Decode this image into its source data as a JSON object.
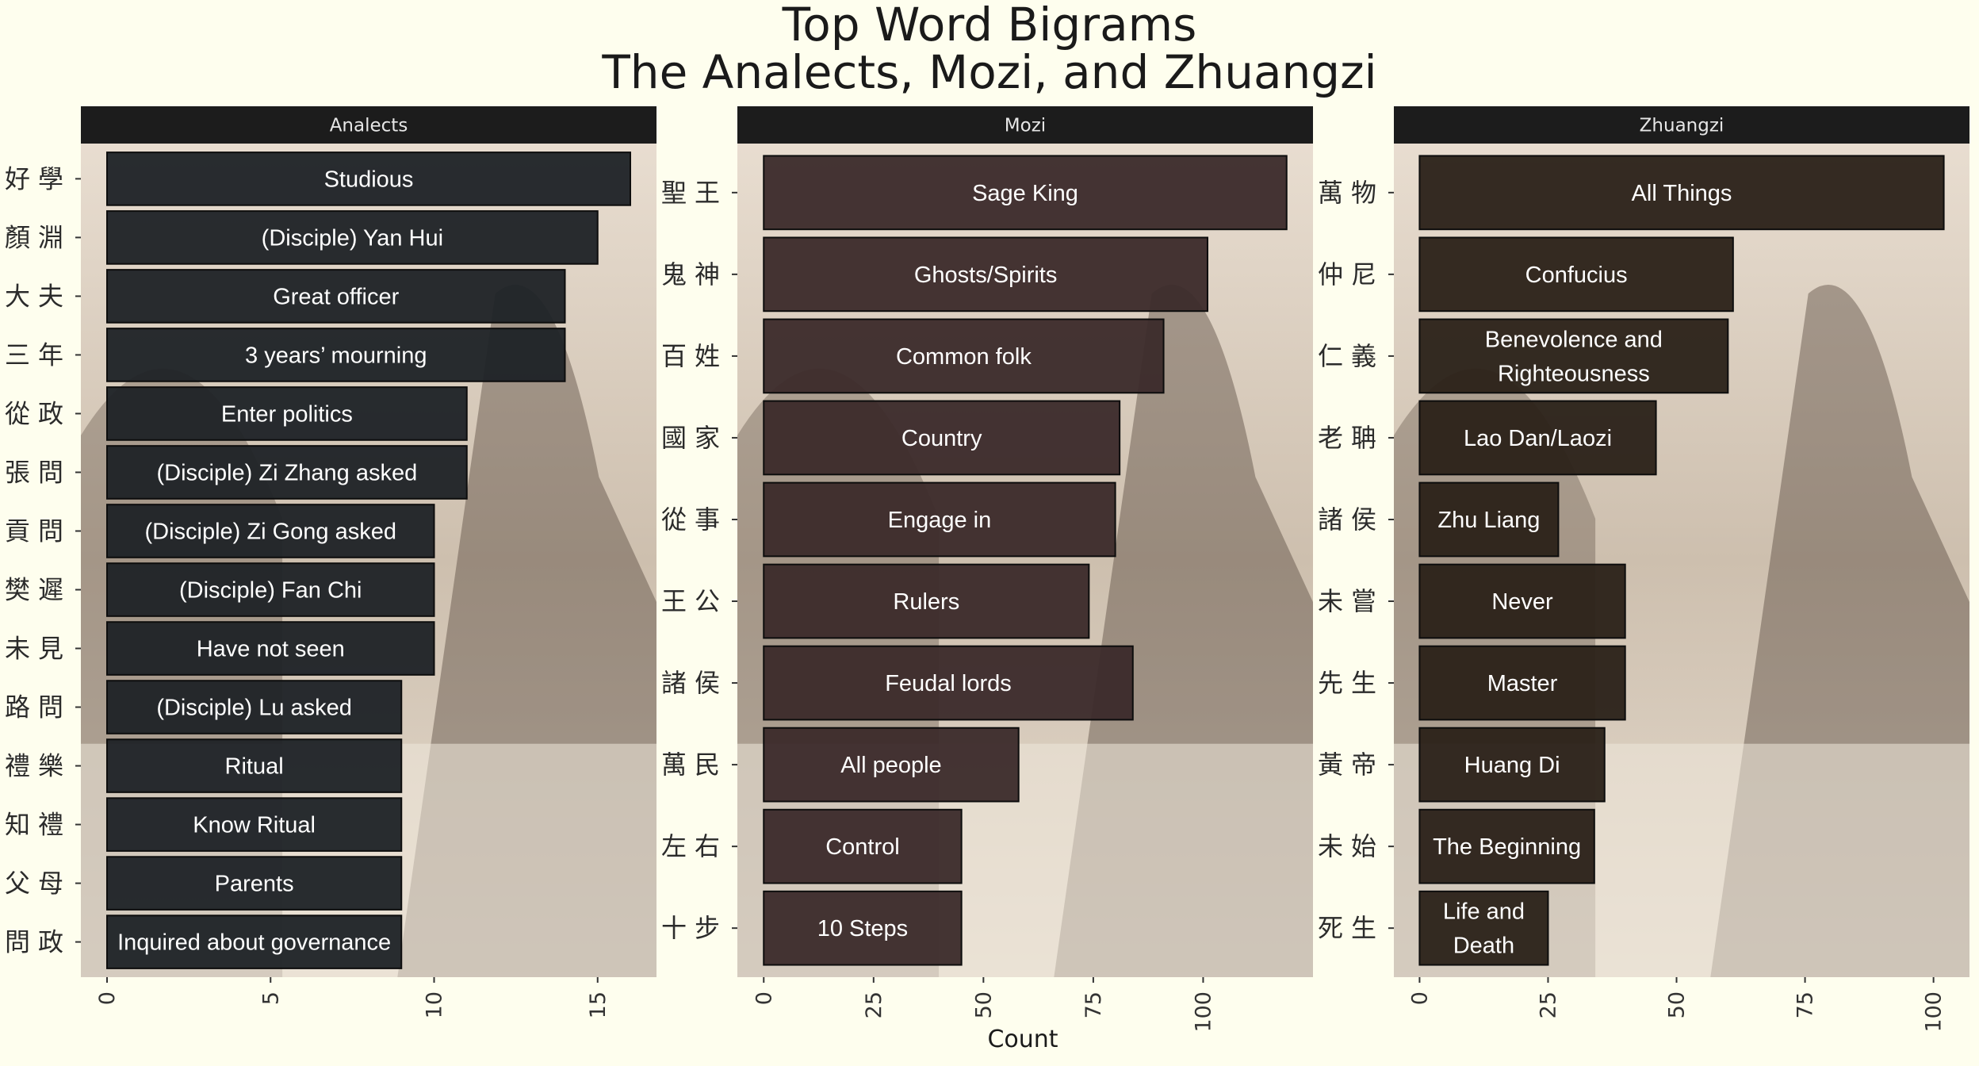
{
  "title_line1": "Top Word Bigrams",
  "title_line2": "The Analects, Mozi, and Zhuangzi",
  "xlabel": "Count",
  "chart_data": [
    {
      "type": "bar",
      "orientation": "horizontal",
      "panel_title": "Analects",
      "categories": [
        "好學",
        "顏淵",
        "大夫",
        "三年",
        "從政",
        "張問",
        "貢問",
        "樊遲",
        "未見",
        "路問",
        "禮樂",
        "知禮",
        "父母",
        "問政"
      ],
      "translations": [
        "Studious",
        "(Disciple) Yan Hui",
        "Great officer",
        "3 years’ mourning",
        "Enter politics",
        "(Disciple) Zi Zhang asked",
        "(Disciple) Zi Gong asked",
        "(Disciple) Fan Chi",
        "Have not seen",
        "(Disciple) Lu asked",
        "Ritual",
        "Know Ritual",
        "Parents",
        "Inquired about governance"
      ],
      "values": [
        16,
        15,
        14,
        14,
        11,
        11,
        10,
        10,
        10,
        9,
        9,
        9,
        9,
        9
      ],
      "xlim": [
        -0.8,
        16.8
      ],
      "xticks": [
        0,
        5,
        10,
        15
      ],
      "bar_color": "#1e2226"
    },
    {
      "type": "bar",
      "orientation": "horizontal",
      "panel_title": "Mozi",
      "categories": [
        "聖王",
        "鬼神",
        "百姓",
        "國家",
        "從事",
        "王公",
        "諸侯",
        "萬民",
        "左右",
        "十步"
      ],
      "translations": [
        "Sage King",
        "Ghosts/Spirits",
        "Common folk",
        "Country",
        "Engage in",
        "Rulers",
        "Feudal lords",
        "All people",
        "Control",
        "10 Steps"
      ],
      "values": [
        119,
        101,
        91,
        81,
        80,
        74,
        84,
        58,
        45,
        45
      ],
      "xlim": [
        -6,
        125
      ],
      "xticks": [
        0,
        25,
        50,
        75,
        100
      ],
      "bar_color": "#3b2a2a"
    },
    {
      "type": "bar",
      "orientation": "horizontal",
      "panel_title": "Zhuangzi",
      "categories": [
        "萬物",
        "仲尼",
        "仁義",
        "老聃",
        "諸侯",
        "未嘗",
        "先生",
        "黃帝",
        "未始",
        "死生"
      ],
      "translations": [
        "All Things",
        "Confucius",
        "Benevolence and\nRighteousness",
        "Lao Dan/Laozi",
        "Zhu Liang",
        "Never",
        "Master",
        "Huang Di",
        "The Beginning",
        "Life and\nDeath"
      ],
      "values": [
        102,
        61,
        60,
        46,
        27,
        40,
        40,
        36,
        34,
        25
      ],
      "xlim": [
        -5,
        107
      ],
      "xticks": [
        0,
        25,
        50,
        75,
        100
      ],
      "bar_color": "#2a2118"
    }
  ]
}
